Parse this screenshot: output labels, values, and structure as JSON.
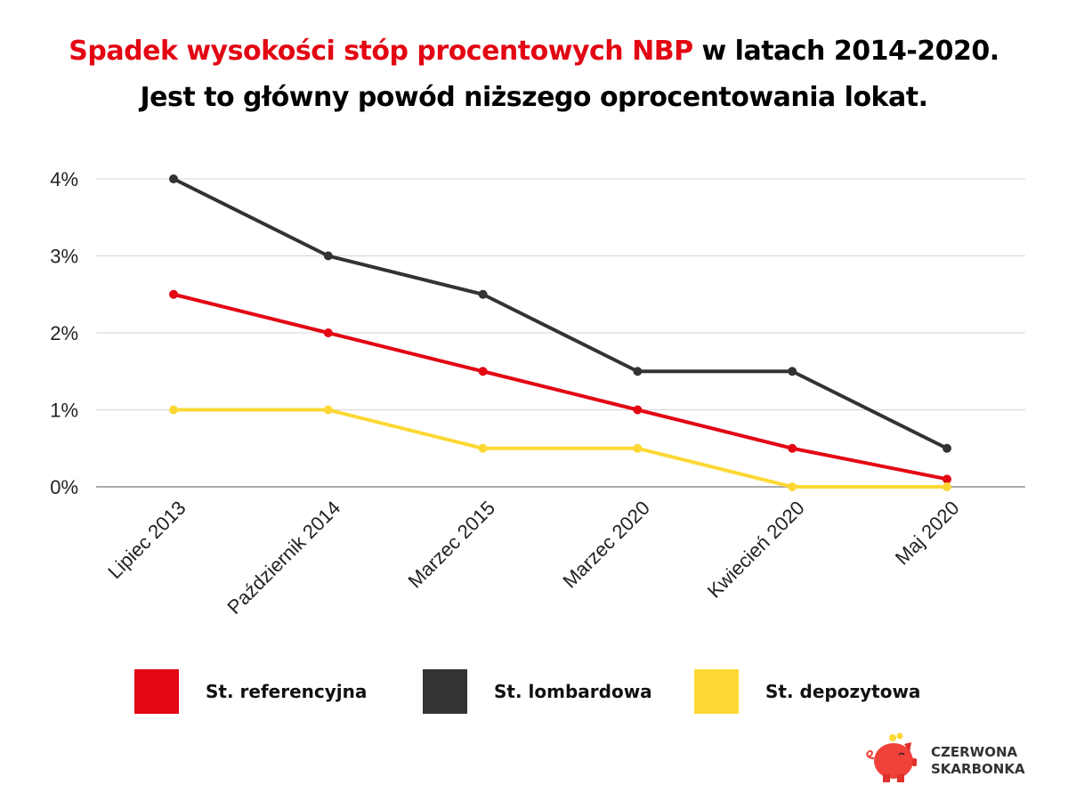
{
  "title": {
    "highlight": "Spadek wysokości stóp procentowych NBP",
    "rest": " w latach 2014-2020.",
    "line2": "Jest to główny powód niższego oprocentowania lokat."
  },
  "chart_data": {
    "type": "line",
    "categories": [
      "Lipiec 2013",
      "Październik 2014",
      "Marzec 2015",
      "Marzec 2020",
      "Kwiecień 2020",
      "Maj 2020"
    ],
    "yticks": [
      "0%",
      "1%",
      "2%",
      "3%",
      "4%"
    ],
    "ylim": [
      0,
      4
    ],
    "grid": true,
    "legend_position": "bottom",
    "series": [
      {
        "name": "St. referencyjna",
        "color": "#e30613",
        "values": [
          2.5,
          2.0,
          1.5,
          1.0,
          0.5,
          0.1
        ]
      },
      {
        "name": "St. lombardowa",
        "color": "#333333",
        "values": [
          4.0,
          3.0,
          2.5,
          1.5,
          1.5,
          0.5
        ]
      },
      {
        "name": "St. depozytowa",
        "color": "#fdd835",
        "values": [
          1.0,
          1.0,
          0.5,
          0.5,
          0.0,
          0.0
        ]
      }
    ]
  },
  "logo": {
    "line1": "CZERWONA",
    "line2": "SKARBONKA"
  }
}
